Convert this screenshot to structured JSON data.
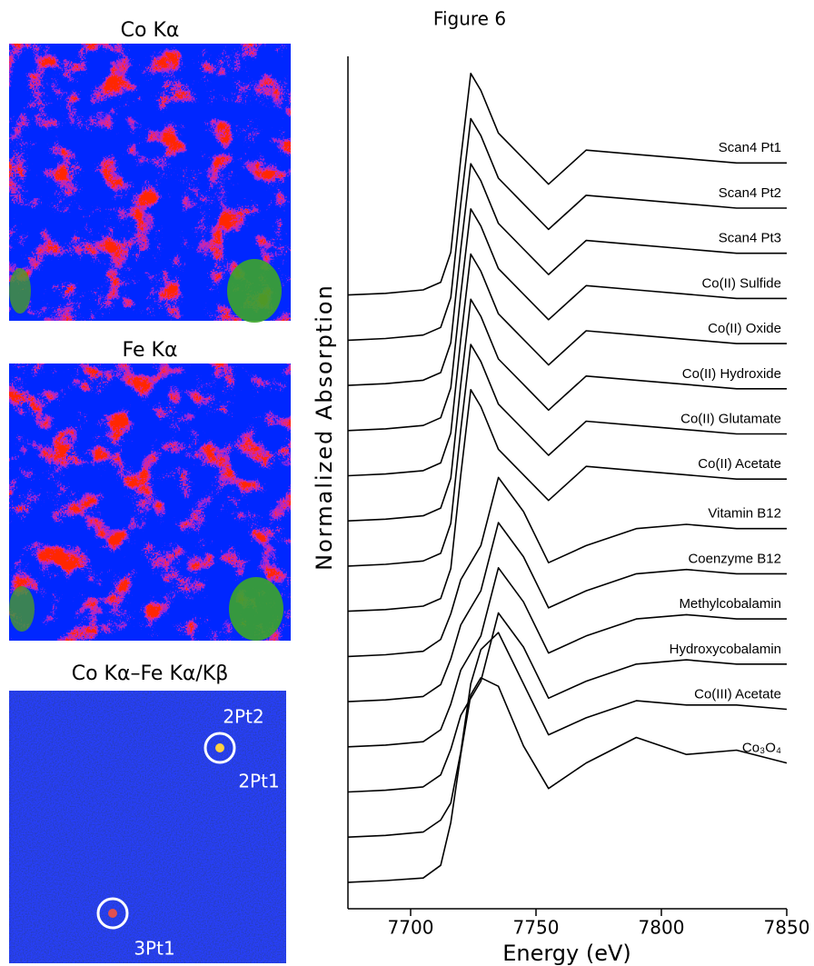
{
  "maps": [
    {
      "title": "Co Kα"
    },
    {
      "title": "Fe Kα"
    },
    {
      "title": "Co Kα–Fe Kα/Kβ",
      "spots": [
        "2Pt2",
        "2Pt1",
        "3Pt1"
      ]
    }
  ],
  "chart_data": {
    "type": "line",
    "title": "Figure 6",
    "x_label": "Energy (eV)",
    "y_label": "Normalized Absorption",
    "color": "#000000",
    "xlim": [
      7675,
      7850
    ],
    "xticks": [
      7700,
      7750,
      7800,
      7850
    ],
    "ylim": [
      0,
      100
    ],
    "x": [
      7675,
      7690,
      7705,
      7712,
      7716,
      7720,
      7724,
      7728,
      7735,
      7745,
      7755,
      7770,
      7790,
      7810,
      7830,
      7850
    ],
    "series": [
      {
        "name": "Scan4 Pt1",
        "values": [
          72,
          72.2,
          72.6,
          73.5,
          77,
          88,
          98,
          96,
          91,
          88,
          85,
          89,
          88.5,
          88,
          87.5,
          87.5
        ]
      },
      {
        "name": "Scan4 Pt2",
        "values": [
          66.7,
          66.9,
          67.3,
          68.2,
          71.7,
          82.7,
          92.7,
          90.7,
          85.7,
          82.7,
          79.7,
          83.7,
          83.2,
          82.7,
          82.2,
          82.2
        ]
      },
      {
        "name": "Scan4 Pt3",
        "values": [
          61.4,
          61.6,
          62,
          62.9,
          66.4,
          77.4,
          87.4,
          85.4,
          80.4,
          77.4,
          74.4,
          78.4,
          77.9,
          77.4,
          76.9,
          76.9
        ]
      },
      {
        "name": "Co(II) Sulfide",
        "values": [
          56.1,
          56.3,
          56.7,
          57.6,
          61.1,
          72.1,
          82.1,
          80.1,
          75.1,
          72.1,
          69.1,
          73.1,
          72.6,
          72.1,
          71.6,
          71.6
        ]
      },
      {
        "name": "Co(II) Oxide",
        "values": [
          50.8,
          51,
          51.4,
          52.3,
          55.8,
          66.8,
          76.8,
          74.8,
          69.8,
          66.8,
          63.8,
          67.8,
          67.3,
          66.8,
          66.3,
          66.3
        ]
      },
      {
        "name": "Co(II) Hydroxide",
        "values": [
          45.5,
          45.7,
          46.1,
          47,
          50.5,
          61.5,
          71.5,
          69.5,
          64.5,
          61.5,
          58.5,
          62.5,
          62,
          61.5,
          61,
          61
        ]
      },
      {
        "name": "Co(II) Glutamate",
        "values": [
          40.2,
          40.4,
          40.8,
          41.7,
          45.2,
          56.2,
          66.2,
          64.2,
          59.2,
          56.2,
          53.2,
          57.2,
          56.7,
          56.2,
          55.7,
          55.7
        ]
      },
      {
        "name": "Co(II) Acetate",
        "values": [
          34.9,
          35.1,
          35.5,
          36.4,
          39.9,
          50.9,
          60.9,
          58.9,
          53.9,
          50.9,
          47.9,
          51.9,
          51.4,
          50.9,
          50.4,
          50.4
        ]
      },
      {
        "name": "Vitamin B12",
        "values": [
          29.6,
          29.8,
          30.2,
          31.6,
          34.6,
          38.6,
          40.6,
          42.6,
          50.6,
          46.6,
          40.6,
          42.6,
          44.6,
          45.1,
          44.6,
          44.6
        ]
      },
      {
        "name": "Coenzyme B12",
        "values": [
          24.3,
          24.5,
          24.9,
          26.3,
          29.3,
          33.3,
          35.3,
          37.3,
          45.3,
          41.3,
          35.3,
          37.3,
          39.3,
          39.8,
          39.3,
          39.3
        ]
      },
      {
        "name": "Methylcobalamin",
        "values": [
          19,
          19.2,
          19.6,
          21,
          24,
          28,
          30,
          32,
          40,
          36,
          30,
          32,
          34,
          34.5,
          34,
          34
        ]
      },
      {
        "name": "Hydroxycobalamin",
        "values": [
          13.7,
          13.9,
          14.3,
          15.7,
          18.7,
          22.7,
          24.7,
          26.7,
          34.7,
          30.7,
          24.7,
          26.7,
          28.7,
          29.2,
          28.7,
          28.7
        ]
      },
      {
        "name": "Co(III) Acetate",
        "values": [
          8.4,
          8.6,
          9,
          10.4,
          12.4,
          18.4,
          26.4,
          30.4,
          32.4,
          26.4,
          20.4,
          22.4,
          24.4,
          23.9,
          23.9,
          23.4
        ]
      },
      {
        "name": "Co₃O₄",
        "values": [
          3.1,
          3.3,
          3.6,
          5.1,
          10.1,
          18.1,
          25.1,
          27.1,
          26.1,
          19.1,
          14.1,
          17.1,
          20.1,
          18.1,
          18.6,
          17.1
        ]
      }
    ]
  }
}
